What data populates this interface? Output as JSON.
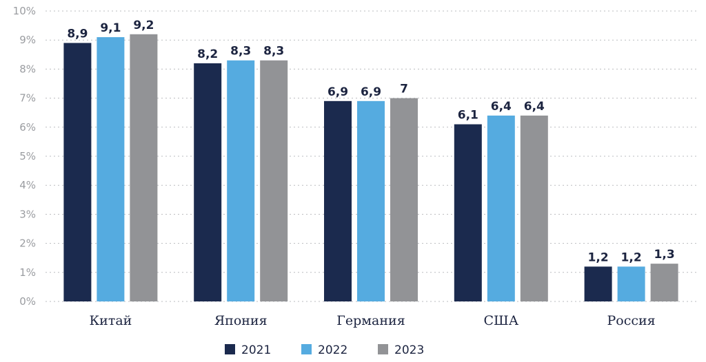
{
  "chart_data": {
    "type": "bar",
    "categories": [
      "Китай",
      "Япония",
      "Германия",
      "США",
      "Россия"
    ],
    "series": [
      {
        "name": "2021",
        "values": [
          8.9,
          8.2,
          6.9,
          6.1,
          1.2
        ],
        "labels": [
          "8,9",
          "8,2",
          "6,9",
          "6,1",
          "1,2"
        ],
        "color": "#1b2a4e"
      },
      {
        "name": "2022",
        "values": [
          9.1,
          8.3,
          6.9,
          6.4,
          1.2
        ],
        "labels": [
          "9,1",
          "8,3",
          "6,9",
          "6,4",
          "1,2"
        ],
        "color": "#55abe0"
      },
      {
        "name": "2023",
        "values": [
          9.2,
          8.3,
          7.0,
          6.4,
          1.3
        ],
        "labels": [
          "9,2",
          "8,3",
          "7",
          "6,4",
          "1,3"
        ],
        "color": "#929396"
      }
    ],
    "ylim": [
      0,
      10
    ],
    "yticks": [
      0,
      1,
      2,
      3,
      4,
      5,
      6,
      7,
      8,
      9,
      10
    ],
    "ytick_labels": [
      "0%",
      "1%",
      "2%",
      "3%",
      "4%",
      "5%",
      "6%",
      "7%",
      "8%",
      "9%",
      "10%"
    ],
    "grid": true,
    "legend_position": "bottom-center",
    "title": "",
    "xlabel": "",
    "ylabel": ""
  }
}
